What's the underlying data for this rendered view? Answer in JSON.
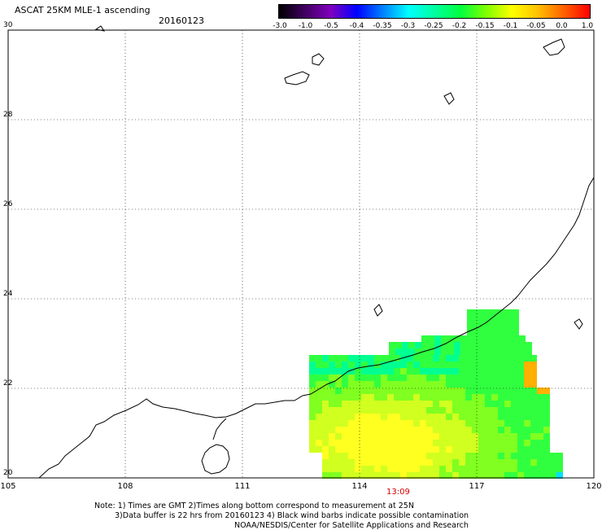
{
  "header": {
    "title": "ASCAT 25KM MLE-1 ascending",
    "date": "20160123"
  },
  "colorbar": {
    "labels": [
      "-3.0",
      "-1.0",
      "-0.5",
      "-0.4",
      "-0.35",
      "-0.3",
      "-0.25",
      "-0.2",
      "-0.15",
      "-0.1",
      "-0.05",
      "0.0",
      "1.0"
    ],
    "colors": [
      "#000000",
      "#400060",
      "#8000c0",
      "#0000ff",
      "#0080ff",
      "#00ffff",
      "#00ffa0",
      "#00ff40",
      "#80ff00",
      "#ffff00",
      "#ffc000",
      "#ff6000",
      "#ff0000"
    ]
  },
  "map": {
    "lat_labels": [
      "30",
      "28",
      "26",
      "24",
      "22",
      "20"
    ],
    "lon_labels": [
      "105",
      "108",
      "111",
      "114",
      "117",
      "120"
    ],
    "lat_range": [
      20,
      30
    ],
    "lon_range": [
      105,
      120
    ],
    "time_label": "13:09"
  },
  "notes": {
    "line1": "Note: 1) Times are GMT 2)Times along bottom correspond to measurement at 25N",
    "line2": "3)Data buffer is 22 hrs from 20160123 4) Black wind barbs indicate possible contamination",
    "line3": "NOAA/NESDIS/Center for Satellite Applications and Research"
  }
}
